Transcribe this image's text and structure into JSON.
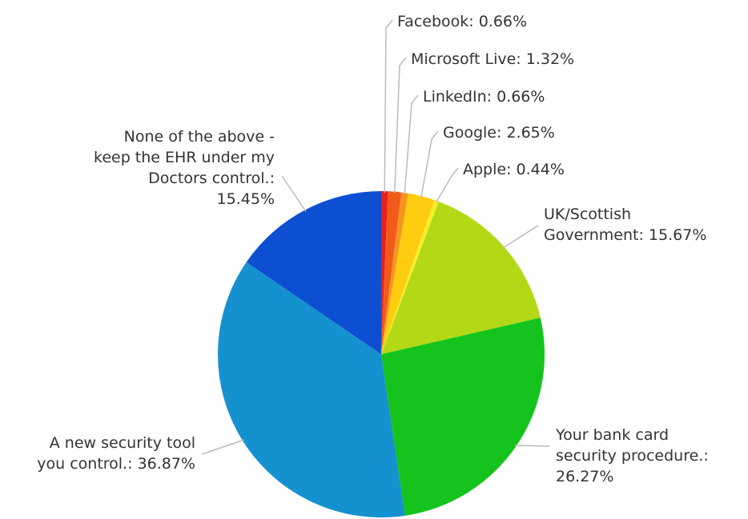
{
  "chart_data": {
    "type": "pie",
    "title": "",
    "slices": [
      {
        "label": "Facebook",
        "value": 0.66,
        "value_text": "Facebook: 0.66%",
        "color": "#e8201e"
      },
      {
        "label": "Microsoft Live",
        "value": 1.32,
        "value_text": "Microsoft Live: 1.32%",
        "color": "#f25a1a"
      },
      {
        "label": "LinkedIn",
        "value": 0.66,
        "value_text": "LinkedIn: 0.66%",
        "color": "#f7941d"
      },
      {
        "label": "Google",
        "value": 2.65,
        "value_text": "Google: 2.65%",
        "color": "#ffcc0f"
      },
      {
        "label": "Apple",
        "value": 0.44,
        "value_text": "Apple: 0.44%",
        "color": "#f4ef2b"
      },
      {
        "label": "UK/Scottish Government",
        "value": 15.67,
        "value_text": "UK/Scottish Government: 15.67%",
        "color": "#b3d916"
      },
      {
        "label": "Your bank card security procedure.",
        "value": 26.27,
        "value_text": "Your bank card security procedure.: 26.27%",
        "color": "#14c41d"
      },
      {
        "label": "A new security tool you control.",
        "value": 36.87,
        "value_text": "A new security tool you control.: 36.87%",
        "color": "#1591cf"
      },
      {
        "label": "None of the above - keep the EHR under my Doctors control.",
        "value": 15.45,
        "value_text": "None of the above - keep the EHR under my Doctors control.: 15.45%",
        "color": "#0d4fd1"
      }
    ]
  }
}
